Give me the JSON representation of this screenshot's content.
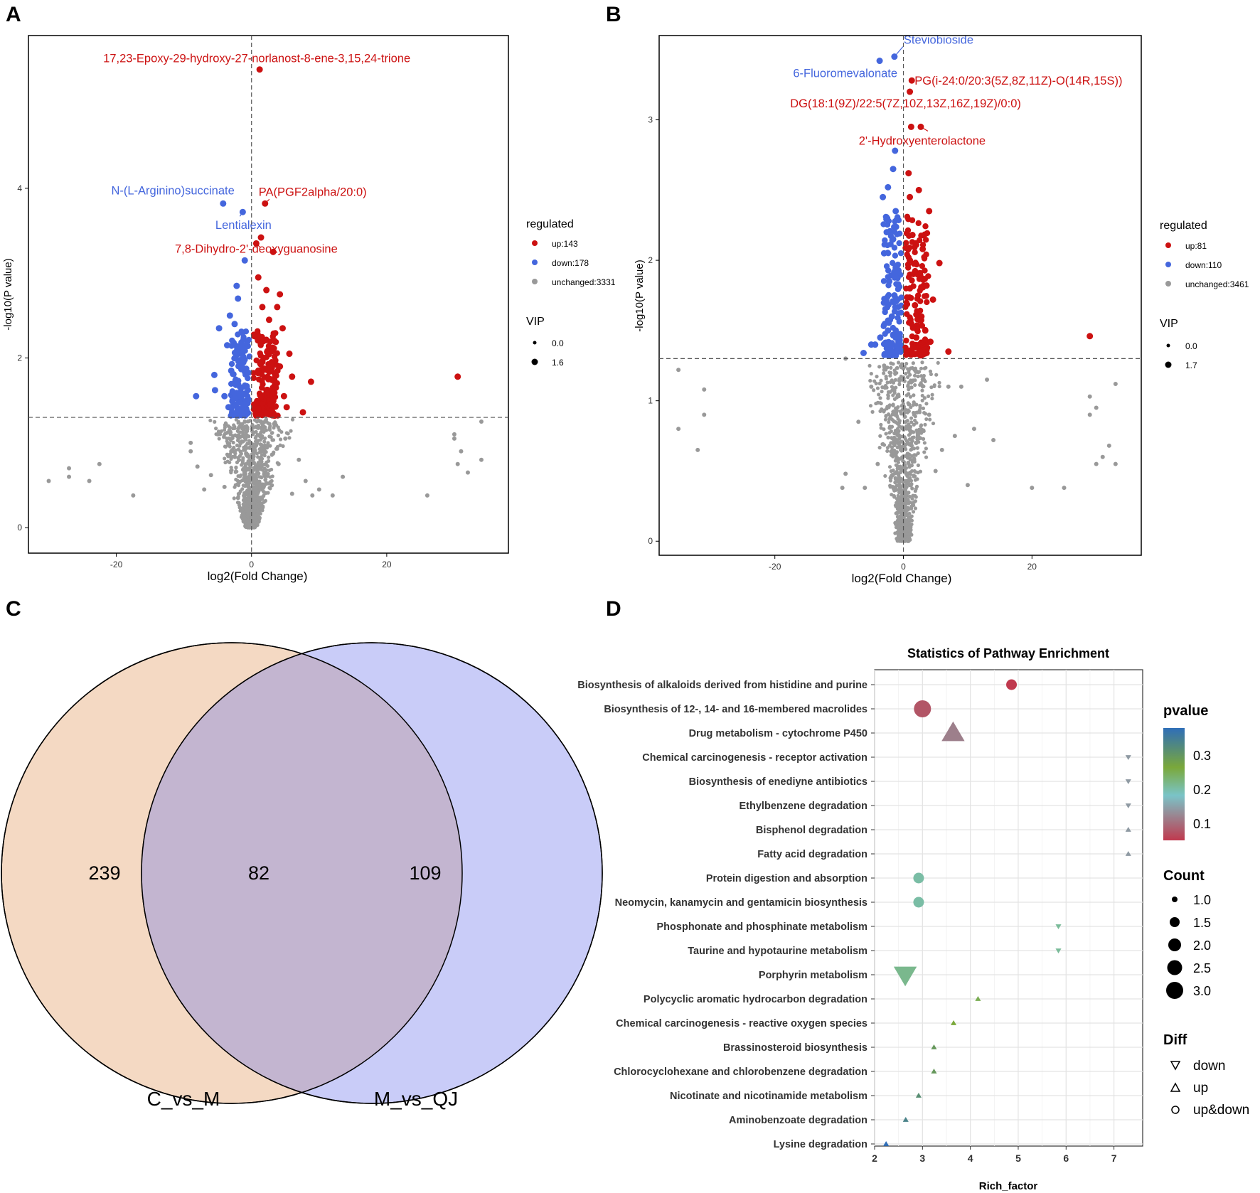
{
  "panels": [
    "A",
    "B",
    "C",
    "D"
  ],
  "chart_data": [
    {
      "id": "A",
      "type": "scatter",
      "title": "",
      "xlabel": "log2(Fold Change)",
      "ylabel": "-log10(P value)",
      "xlim": [
        -33,
        38
      ],
      "ylim": [
        -0.3,
        5.8
      ],
      "xticks": [
        -20,
        0,
        20
      ],
      "yticks": [
        0,
        2,
        4
      ],
      "p_threshold_y": 1.3,
      "fc_threshold_x": 0,
      "legend": {
        "position": "right",
        "regulated_title": "regulated",
        "regulated_items": [
          {
            "label": "up:143",
            "color": "#cc1111"
          },
          {
            "label": "down:178",
            "color": "#4466dd"
          },
          {
            "label": "unchanged:3331",
            "color": "#999999"
          }
        ],
        "vip_title": "VIP",
        "vip_items": [
          {
            "label": "0.0",
            "size": 0
          },
          {
            "label": "1.6",
            "size": 1.6
          }
        ]
      },
      "labels": [
        {
          "text": "17,23-Epoxy-29-hydroxy-27-norlanost-8-ene-3,15,24-trione",
          "x": 1.2,
          "y": 5.4,
          "group": "up"
        },
        {
          "text": "PA(PGF2alpha/20:0)",
          "x": 2.0,
          "y": 3.82,
          "group": "up"
        },
        {
          "text": "N-(L-Arginino)succinate",
          "x": -4.2,
          "y": 3.82,
          "group": "down"
        },
        {
          "text": "Lentialexin",
          "x": -1.3,
          "y": 3.72,
          "group": "down"
        },
        {
          "text": "7,8-Dihydro-2'-deoxyguanosine",
          "x": 0.7,
          "y": 3.35,
          "group": "up"
        }
      ],
      "up_points": [
        [
          1.2,
          5.4
        ],
        [
          2.0,
          3.82
        ],
        [
          0.7,
          3.35
        ],
        [
          1.4,
          3.42
        ],
        [
          3.2,
          3.25
        ],
        [
          1.0,
          2.95
        ],
        [
          2.2,
          2.8
        ],
        [
          4.2,
          2.75
        ],
        [
          1.6,
          2.6
        ],
        [
          3.8,
          2.6
        ],
        [
          2.6,
          2.45
        ],
        [
          4.6,
          2.35
        ],
        [
          1.2,
          2.25
        ],
        [
          3.4,
          2.2
        ],
        [
          5.6,
          2.05
        ],
        [
          1.8,
          2.0
        ],
        [
          3.0,
          1.95
        ],
        [
          4.2,
          1.9
        ],
        [
          6.0,
          1.78
        ],
        [
          8.8,
          1.72
        ],
        [
          1.0,
          1.85
        ],
        [
          2.5,
          1.75
        ],
        [
          3.6,
          1.65
        ],
        [
          4.8,
          1.55
        ],
        [
          1.5,
          1.55
        ],
        [
          2.8,
          1.45
        ],
        [
          5.2,
          1.42
        ],
        [
          7.6,
          1.36
        ],
        [
          1.0,
          1.4
        ],
        [
          2.2,
          1.35
        ],
        [
          3.4,
          1.32
        ],
        [
          30.5,
          1.78
        ]
      ],
      "down_points": [
        [
          -4.2,
          3.82
        ],
        [
          -1.3,
          3.72
        ],
        [
          -1.0,
          3.15
        ],
        [
          -2.2,
          2.85
        ],
        [
          -2.0,
          2.7
        ],
        [
          -3.2,
          2.5
        ],
        [
          -2.5,
          2.4
        ],
        [
          -4.8,
          2.35
        ],
        [
          -1.4,
          2.3
        ],
        [
          -3.6,
          2.15
        ],
        [
          -2.0,
          2.05
        ],
        [
          -1.2,
          1.95
        ],
        [
          -3.0,
          1.85
        ],
        [
          -5.5,
          1.8
        ],
        [
          -2.4,
          1.7
        ],
        [
          -1.6,
          1.6
        ],
        [
          -4.0,
          1.55
        ],
        [
          -2.8,
          1.5
        ],
        [
          -1.2,
          1.45
        ],
        [
          -3.4,
          1.42
        ],
        [
          -2.0,
          1.38
        ],
        [
          -1.4,
          1.35
        ],
        [
          -8.2,
          1.55
        ],
        [
          -5.4,
          1.62
        ]
      ],
      "unchanged_points": [
        [
          -30,
          0.55
        ],
        [
          -27,
          0.6
        ],
        [
          -27,
          0.7
        ],
        [
          -24,
          0.55
        ],
        [
          -22.5,
          0.75
        ],
        [
          -17.5,
          0.38
        ],
        [
          -9,
          0.9
        ],
        [
          -9,
          1.0
        ],
        [
          -8,
          0.72
        ],
        [
          -7,
          0.45
        ],
        [
          -6,
          0.62
        ],
        [
          -5,
          1.1
        ],
        [
          -4,
          0.48
        ],
        [
          -3,
          0.9
        ],
        [
          -2,
          0.35
        ],
        [
          -1.5,
          1.2
        ],
        [
          -1,
          0.6
        ],
        [
          -0.5,
          0.2
        ],
        [
          0.4,
          0.1
        ],
        [
          0.8,
          0.5
        ],
        [
          1.5,
          0.9
        ],
        [
          2,
          1.25
        ],
        [
          3,
          0.5
        ],
        [
          4,
          0.75
        ],
        [
          5,
          1.05
        ],
        [
          6,
          0.4
        ],
        [
          7,
          0.8
        ],
        [
          8,
          0.55
        ],
        [
          9,
          0.38
        ],
        [
          10,
          0.45
        ],
        [
          12,
          0.38
        ],
        [
          13.5,
          0.6
        ],
        [
          26,
          0.38
        ],
        [
          30,
          1.1
        ],
        [
          30,
          1.05
        ],
        [
          31,
          0.9
        ],
        [
          30.5,
          0.75
        ],
        [
          32,
          0.65
        ],
        [
          34,
          1.25
        ],
        [
          34,
          0.8
        ]
      ]
    },
    {
      "id": "B",
      "type": "scatter",
      "title": "",
      "xlabel": "log2(Fold Change)",
      "ylabel": "-log10(P value)",
      "xlim": [
        -38,
        37
      ],
      "ylim": [
        -0.1,
        3.6
      ],
      "xticks": [
        -20,
        0,
        20
      ],
      "yticks": [
        0,
        1,
        2,
        3
      ],
      "p_threshold_y": 1.3,
      "fc_threshold_x": 0,
      "legend": {
        "position": "right",
        "regulated_title": "regulated",
        "regulated_items": [
          {
            "label": "up:81",
            "color": "#cc1111"
          },
          {
            "label": "down:110",
            "color": "#4466dd"
          },
          {
            "label": "unchanged:3461",
            "color": "#999999"
          }
        ],
        "vip_title": "VIP",
        "vip_items": [
          {
            "label": "0.0",
            "size": 0
          },
          {
            "label": "1.7",
            "size": 1.7
          }
        ]
      },
      "labels": [
        {
          "text": "Steviobioside",
          "x": -1.4,
          "y": 3.45,
          "group": "down"
        },
        {
          "text": "6-Fluoromevalonate",
          "x": -3.7,
          "y": 3.42,
          "group": "down"
        },
        {
          "text": "PG(i-24:0/20:3(5Z,8Z,11Z)-O(14R,15S))",
          "x": 1.3,
          "y": 3.28,
          "group": "up"
        },
        {
          "text": "DG(18:1(9Z)/22:5(7Z,10Z,13Z,16Z,19Z)/0:0)",
          "x": 1.0,
          "y": 3.2,
          "group": "up"
        },
        {
          "text": "2'-Hydroxyenterolactone",
          "x": 2.7,
          "y": 2.95,
          "group": "up"
        }
      ],
      "up_points": [
        [
          1.3,
          3.28
        ],
        [
          1.0,
          3.2
        ],
        [
          2.7,
          2.95
        ],
        [
          1.2,
          2.95
        ],
        [
          0.8,
          2.62
        ],
        [
          2.4,
          2.5
        ],
        [
          1.0,
          2.45
        ],
        [
          4.0,
          2.35
        ],
        [
          1.4,
          2.18
        ],
        [
          3.0,
          2.08
        ],
        [
          1.0,
          2.0
        ],
        [
          5.6,
          1.98
        ],
        [
          2.2,
          1.9
        ],
        [
          3.6,
          1.82
        ],
        [
          1.0,
          1.8
        ],
        [
          4.6,
          1.72
        ],
        [
          1.8,
          1.68
        ],
        [
          2.8,
          1.6
        ],
        [
          1.2,
          1.55
        ],
        [
          3.4,
          1.5
        ],
        [
          2.0,
          1.45
        ],
        [
          4.2,
          1.42
        ],
        [
          1.5,
          1.38
        ],
        [
          2.6,
          1.35
        ],
        [
          7.0,
          1.35
        ],
        [
          29.0,
          1.46
        ]
      ],
      "down_points": [
        [
          -1.4,
          3.45
        ],
        [
          -3.7,
          3.42
        ],
        [
          -1.3,
          2.78
        ],
        [
          -1.6,
          2.65
        ],
        [
          -2.4,
          2.52
        ],
        [
          -3.2,
          2.45
        ],
        [
          -1.2,
          2.35
        ],
        [
          -2.6,
          2.2
        ],
        [
          -1.6,
          2.15
        ],
        [
          -3.0,
          2.05
        ],
        [
          -1.2,
          1.95
        ],
        [
          -2.2,
          1.85
        ],
        [
          -1.4,
          1.75
        ],
        [
          -2.8,
          1.7
        ],
        [
          -1.8,
          1.6
        ],
        [
          -2.4,
          1.5
        ],
        [
          -3.6,
          1.45
        ],
        [
          -1.2,
          1.45
        ],
        [
          -4.4,
          1.4
        ],
        [
          -2.0,
          1.35
        ],
        [
          -6.2,
          1.34
        ],
        [
          -5.0,
          1.4
        ]
      ],
      "unchanged_points": [
        [
          -35,
          1.22
        ],
        [
          -35,
          0.8
        ],
        [
          -31,
          1.08
        ],
        [
          -31,
          0.9
        ],
        [
          -32,
          0.65
        ],
        [
          -9,
          1.3
        ],
        [
          -9.5,
          0.38
        ],
        [
          -9,
          0.48
        ],
        [
          -7,
          0.85
        ],
        [
          -6,
          0.38
        ],
        [
          -5,
          1.1
        ],
        [
          -4,
          0.55
        ],
        [
          -3,
          1.25
        ],
        [
          -2,
          0.45
        ],
        [
          -1,
          0.2
        ],
        [
          0,
          0.05
        ],
        [
          1,
          0.4
        ],
        [
          2,
          0.7
        ],
        [
          3,
          1.15
        ],
        [
          4,
          0.9
        ],
        [
          5,
          0.5
        ],
        [
          6,
          0.65
        ],
        [
          7,
          1.1
        ],
        [
          8,
          0.75
        ],
        [
          9,
          1.1
        ],
        [
          10,
          0.4
        ],
        [
          11,
          0.8
        ],
        [
          13,
          1.15
        ],
        [
          14,
          0.72
        ],
        [
          20,
          0.38
        ],
        [
          25,
          0.38
        ],
        [
          29,
          1.03
        ],
        [
          29,
          0.9
        ],
        [
          30,
          0.95
        ],
        [
          30,
          0.55
        ],
        [
          31,
          0.6
        ],
        [
          32,
          0.68
        ],
        [
          33,
          1.12
        ],
        [
          33,
          0.55
        ]
      ]
    },
    {
      "id": "D",
      "type": "scatter",
      "title": "Statistics of Pathway Enrichment",
      "xlabel": "Rich_factor",
      "ylabel": "",
      "xlim": [
        2,
        7.6
      ],
      "xticks": [
        2,
        3,
        4,
        5,
        6,
        7
      ],
      "legend": {
        "position": "right",
        "pvalue_title": "pvalue",
        "pvalue_ticks": [
          "0.3",
          "0.2",
          "0.1"
        ],
        "count_title": "Count",
        "count_ticks": [
          "1.0",
          "1.5",
          "2.0",
          "2.5",
          "3.0"
        ],
        "diff_title": "Diff",
        "diff_items": [
          {
            "label": "down",
            "shape": "down"
          },
          {
            "label": "up",
            "shape": "up"
          },
          {
            "label": "up&down",
            "shape": "circle"
          }
        ]
      },
      "pathways": [
        {
          "name": "Biosynthesis of alkaloids derived from histidine and purine",
          "rich_factor": 4.86,
          "count": 2,
          "pvalue": 0.05,
          "diff": "up&down"
        },
        {
          "name": "Biosynthesis of 12-, 14- and 16-membered macrolides",
          "rich_factor": 3.0,
          "count": 3,
          "pvalue": 0.07,
          "diff": "up&down"
        },
        {
          "name": "Drug metabolism - cytochrome P450",
          "rich_factor": 3.64,
          "count": 3,
          "pvalue": 0.1,
          "diff": "up"
        },
        {
          "name": "Chemical carcinogenesis - receptor activation",
          "rich_factor": 7.3,
          "count": 1,
          "pvalue": 0.12,
          "diff": "down"
        },
        {
          "name": "Biosynthesis of enediyne antibiotics",
          "rich_factor": 7.3,
          "count": 1,
          "pvalue": 0.12,
          "diff": "down"
        },
        {
          "name": "Ethylbenzene degradation",
          "rich_factor": 7.3,
          "count": 1,
          "pvalue": 0.12,
          "diff": "down"
        },
        {
          "name": "Bisphenol degradation",
          "rich_factor": 7.3,
          "count": 1,
          "pvalue": 0.12,
          "diff": "up"
        },
        {
          "name": "Fatty acid degradation",
          "rich_factor": 7.3,
          "count": 1,
          "pvalue": 0.12,
          "diff": "up"
        },
        {
          "name": "Protein digestion and absorption",
          "rich_factor": 2.92,
          "count": 2,
          "pvalue": 0.18,
          "diff": "up&down"
        },
        {
          "name": "Neomycin, kanamycin and gentamicin biosynthesis",
          "rich_factor": 2.92,
          "count": 2,
          "pvalue": 0.18,
          "diff": "up&down"
        },
        {
          "name": "Phosphonate and phosphinate metabolism",
          "rich_factor": 5.84,
          "count": 1,
          "pvalue": 0.19,
          "diff": "down"
        },
        {
          "name": "Taurine and hypotaurine metabolism",
          "rich_factor": 5.84,
          "count": 1,
          "pvalue": 0.19,
          "diff": "down"
        },
        {
          "name": "Porphyrin metabolism",
          "rich_factor": 2.64,
          "count": 3,
          "pvalue": 0.2,
          "diff": "down"
        },
        {
          "name": "Polycyclic aromatic hydrocarbon degradation",
          "rich_factor": 4.16,
          "count": 1,
          "pvalue": 0.25,
          "diff": "up"
        },
        {
          "name": "Chemical carcinogenesis - reactive oxygen species",
          "rich_factor": 3.65,
          "count": 1,
          "pvalue": 0.27,
          "diff": "up"
        },
        {
          "name": "Brassinosteroid biosynthesis",
          "rich_factor": 3.24,
          "count": 1,
          "pvalue": 0.3,
          "diff": "up"
        },
        {
          "name": "Chlorocyclohexane and chlorobenzene degradation",
          "rich_factor": 3.24,
          "count": 1,
          "pvalue": 0.3,
          "diff": "up"
        },
        {
          "name": "Nicotinate and nicotinamide metabolism",
          "rich_factor": 2.92,
          "count": 1,
          "pvalue": 0.32,
          "diff": "up"
        },
        {
          "name": "Aminobenzoate degradation",
          "rich_factor": 2.65,
          "count": 1,
          "pvalue": 0.34,
          "diff": "up"
        },
        {
          "name": "Lysine degradation",
          "rich_factor": 2.24,
          "count": 1,
          "pvalue": 0.38,
          "diff": "up"
        }
      ]
    }
  ],
  "venn": {
    "sets": [
      {
        "name": "C_vs_M",
        "color": "#f4d9c3"
      },
      {
        "name": "M_vs_QJ",
        "color": "#c9ccf8"
      }
    ],
    "regions": {
      "only_left": "239",
      "both": "82",
      "only_right": "109"
    },
    "overlap_color": "#c3b5d0"
  },
  "colors": {
    "up": "#cc1111",
    "down": "#4466dd",
    "unchanged": "#999999"
  }
}
